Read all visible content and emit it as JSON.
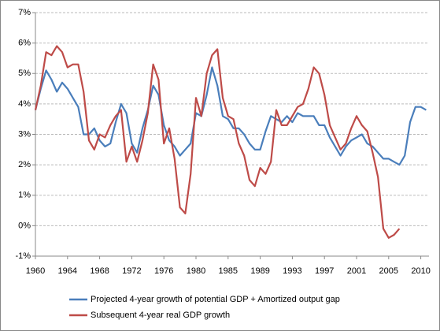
{
  "chart_data": {
    "type": "line",
    "categories": [
      "1960",
      null,
      null,
      null,
      null,
      null,
      "1964",
      null,
      null,
      null,
      null,
      null,
      "1968",
      null,
      null,
      null,
      null,
      null,
      "1972",
      null,
      null,
      null,
      null,
      null,
      "1976",
      null,
      null,
      null,
      null,
      null,
      "1980",
      null,
      null,
      null,
      null,
      null,
      "1985",
      null,
      null,
      null,
      null,
      null,
      "1989",
      null,
      null,
      null,
      null,
      null,
      "1993",
      null,
      null,
      null,
      null,
      null,
      "1997",
      null,
      null,
      null,
      null,
      null,
      "2001",
      null,
      null,
      null,
      null,
      null,
      "2005",
      null,
      null,
      null,
      null,
      null,
      "2010",
      null
    ],
    "series": [
      {
        "name": "Projected 4-year growth of potential GDP + Amortized output gap",
        "color": "#4a7ebb",
        "values": [
          3.8,
          4.5,
          5.1,
          4.8,
          4.4,
          4.7,
          4.5,
          4.2,
          3.9,
          3.0,
          3.0,
          3.2,
          2.8,
          2.6,
          2.7,
          3.4,
          4.0,
          3.7,
          2.7,
          2.4,
          3.2,
          3.8,
          4.6,
          4.3,
          3.3,
          2.8,
          2.6,
          2.3,
          2.5,
          2.7,
          3.7,
          3.6,
          4.3,
          5.2,
          4.6,
          3.6,
          3.5,
          3.2,
          3.2,
          3.0,
          2.7,
          2.5,
          2.5,
          3.1,
          3.6,
          3.5,
          3.4,
          3.6,
          3.4,
          3.7,
          3.6,
          3.6,
          3.6,
          3.3,
          3.3,
          2.9,
          2.6,
          2.3,
          2.6,
          2.8,
          2.9,
          3.0,
          2.7,
          2.6,
          2.4,
          2.2,
          2.2,
          2.1,
          2.0,
          2.3,
          3.4,
          3.9,
          3.9,
          3.8
        ]
      },
      {
        "name": "Subsequent 4-year real GDP growth",
        "color": "#be4b48",
        "values": [
          3.8,
          4.6,
          5.7,
          5.6,
          5.9,
          5.7,
          5.2,
          5.3,
          5.3,
          4.4,
          2.8,
          2.5,
          3.0,
          2.9,
          3.3,
          3.6,
          3.8,
          2.1,
          2.6,
          2.1,
          2.8,
          3.7,
          5.3,
          4.8,
          2.7,
          3.2,
          2.2,
          0.6,
          0.4,
          1.7,
          4.2,
          3.6,
          5.0,
          5.6,
          5.8,
          4.2,
          3.6,
          3.5,
          2.7,
          2.3,
          1.5,
          1.3,
          1.9,
          1.7,
          2.1,
          3.8,
          3.3,
          3.3,
          3.6,
          3.9,
          4.0,
          4.5,
          5.2,
          5.0,
          4.3,
          3.3,
          2.9,
          2.5,
          2.7,
          3.2,
          3.6,
          3.3,
          3.1,
          2.4,
          1.6,
          -0.1,
          -0.4,
          -0.3,
          -0.1,
          null,
          null,
          null,
          null,
          null
        ]
      }
    ],
    "ylim": [
      -1,
      7
    ],
    "yticks": [
      {
        "value": -1,
        "label": "-1%"
      },
      {
        "value": 0,
        "label": "0%"
      },
      {
        "value": 1,
        "label": "1%"
      },
      {
        "value": 2,
        "label": "2%"
      },
      {
        "value": 3,
        "label": "3%"
      },
      {
        "value": 4,
        "label": "4%"
      },
      {
        "value": 5,
        "label": "5%"
      },
      {
        "value": 6,
        "label": "6%"
      },
      {
        "value": 7,
        "label": "7%"
      }
    ],
    "grid": true
  }
}
